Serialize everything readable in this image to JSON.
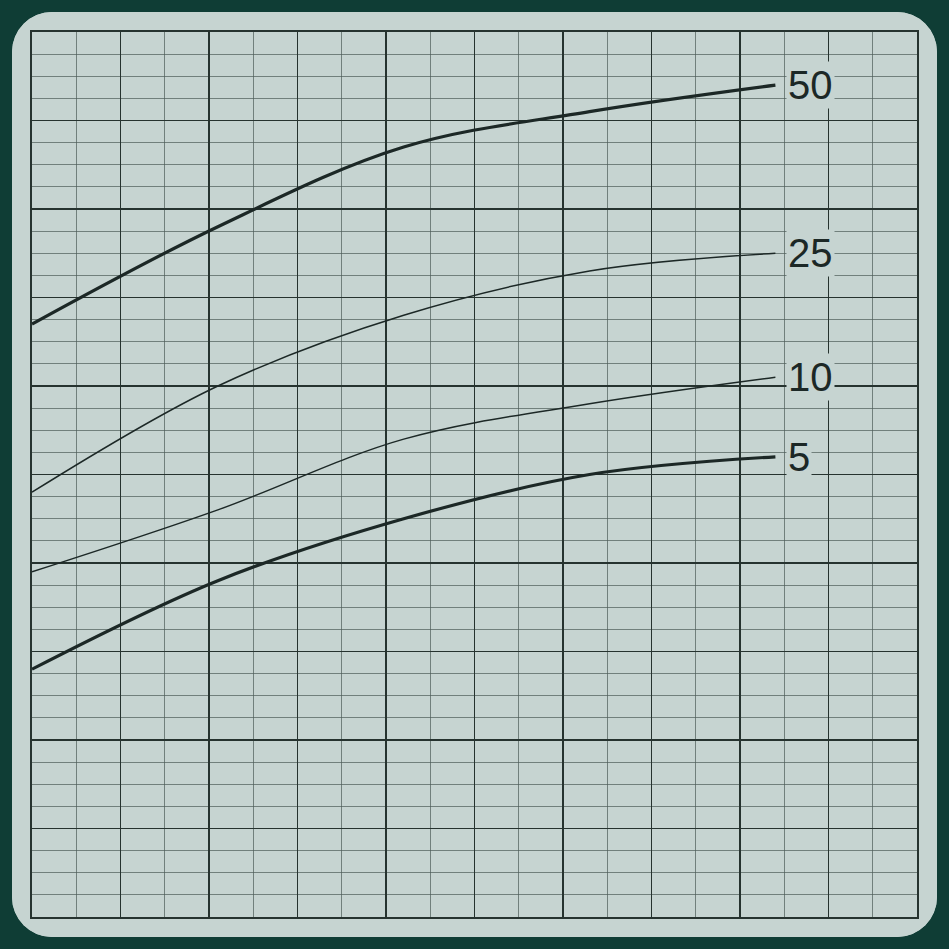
{
  "chart_data": {
    "type": "line",
    "x": [
      0,
      2.1,
      4.2,
      6.3,
      8.4
    ],
    "xlim": [
      0,
      10
    ],
    "ylim": [
      0,
      10
    ],
    "xticks": [
      0,
      1,
      2,
      3,
      4,
      5,
      6,
      7,
      8,
      9,
      10
    ],
    "yticks": [
      0,
      1,
      2,
      3,
      4,
      5,
      6,
      7,
      8,
      9,
      10
    ],
    "grid": true,
    "tick_labels": false,
    "series": [
      {
        "name": "50",
        "color": "#1c2826",
        "line_style": "thick",
        "values": [
          6.7,
          7.8,
          8.7,
          9.1,
          9.4
        ]
      },
      {
        "name": "25",
        "color": "#1c2826",
        "line_style": "thin",
        "values": [
          4.8,
          6.0,
          6.8,
          7.3,
          7.5
        ]
      },
      {
        "name": "10",
        "color": "#1c2826",
        "line_style": "thin",
        "values": [
          3.9,
          4.6,
          5.4,
          5.8,
          6.1
        ]
      },
      {
        "name": "5",
        "color": "#1c2826",
        "line_style": "thick",
        "values": [
          2.8,
          3.8,
          4.5,
          5.0,
          5.2
        ]
      }
    ]
  }
}
